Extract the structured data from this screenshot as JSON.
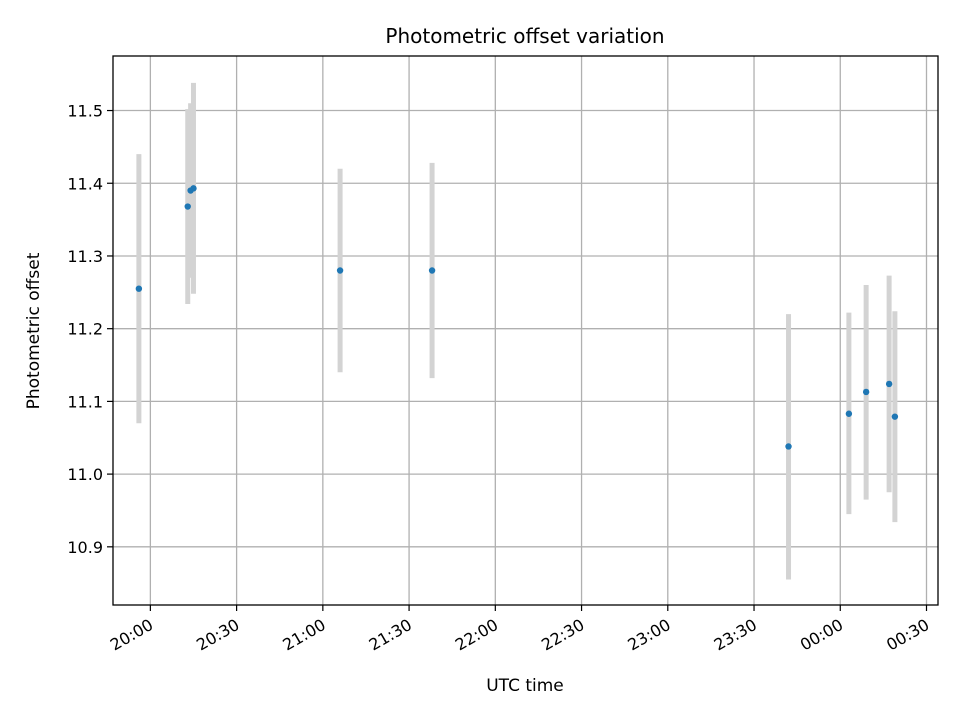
{
  "chart_data": {
    "type": "scatter",
    "title": "Photometric offset variation",
    "xlabel": "UTC time",
    "ylabel": "Photometric offset",
    "x_axis_type": "time",
    "x_range": [
      "19:47",
      "00:34"
    ],
    "ylim": [
      10.82,
      11.575
    ],
    "grid": true,
    "x_ticks": [
      "20:00",
      "20:30",
      "21:00",
      "21:30",
      "22:00",
      "22:30",
      "23:00",
      "23:30",
      "00:00",
      "00:30"
    ],
    "y_ticks": [
      "10.9",
      "11.0",
      "11.1",
      "11.2",
      "11.3",
      "11.4",
      "11.5"
    ],
    "colors": {
      "point": "#1f77b4",
      "errorbar": "#d3d3d3",
      "grid": "#b0b0b0"
    },
    "points": [
      {
        "x": "19:56",
        "y": 11.255,
        "ylow": 11.07,
        "yhigh": 11.44
      },
      {
        "x": "20:13",
        "y": 11.368,
        "ylow": 11.234,
        "yhigh": 11.502
      },
      {
        "x": "20:14",
        "y": 11.39,
        "ylow": 11.27,
        "yhigh": 11.51
      },
      {
        "x": "20:15",
        "y": 11.393,
        "ylow": 11.248,
        "yhigh": 11.538
      },
      {
        "x": "21:06",
        "y": 11.28,
        "ylow": 11.14,
        "yhigh": 11.42
      },
      {
        "x": "21:38",
        "y": 11.28,
        "ylow": 11.132,
        "yhigh": 11.428
      },
      {
        "x": "23:42",
        "y": 11.038,
        "ylow": 10.855,
        "yhigh": 11.22
      },
      {
        "x": "00:03",
        "y": 11.083,
        "ylow": 10.945,
        "yhigh": 11.222
      },
      {
        "x": "00:09",
        "y": 11.113,
        "ylow": 10.965,
        "yhigh": 11.26
      },
      {
        "x": "00:17",
        "y": 11.124,
        "ylow": 10.975,
        "yhigh": 11.273
      },
      {
        "x": "00:19",
        "y": 11.079,
        "ylow": 10.934,
        "yhigh": 11.224
      }
    ]
  }
}
